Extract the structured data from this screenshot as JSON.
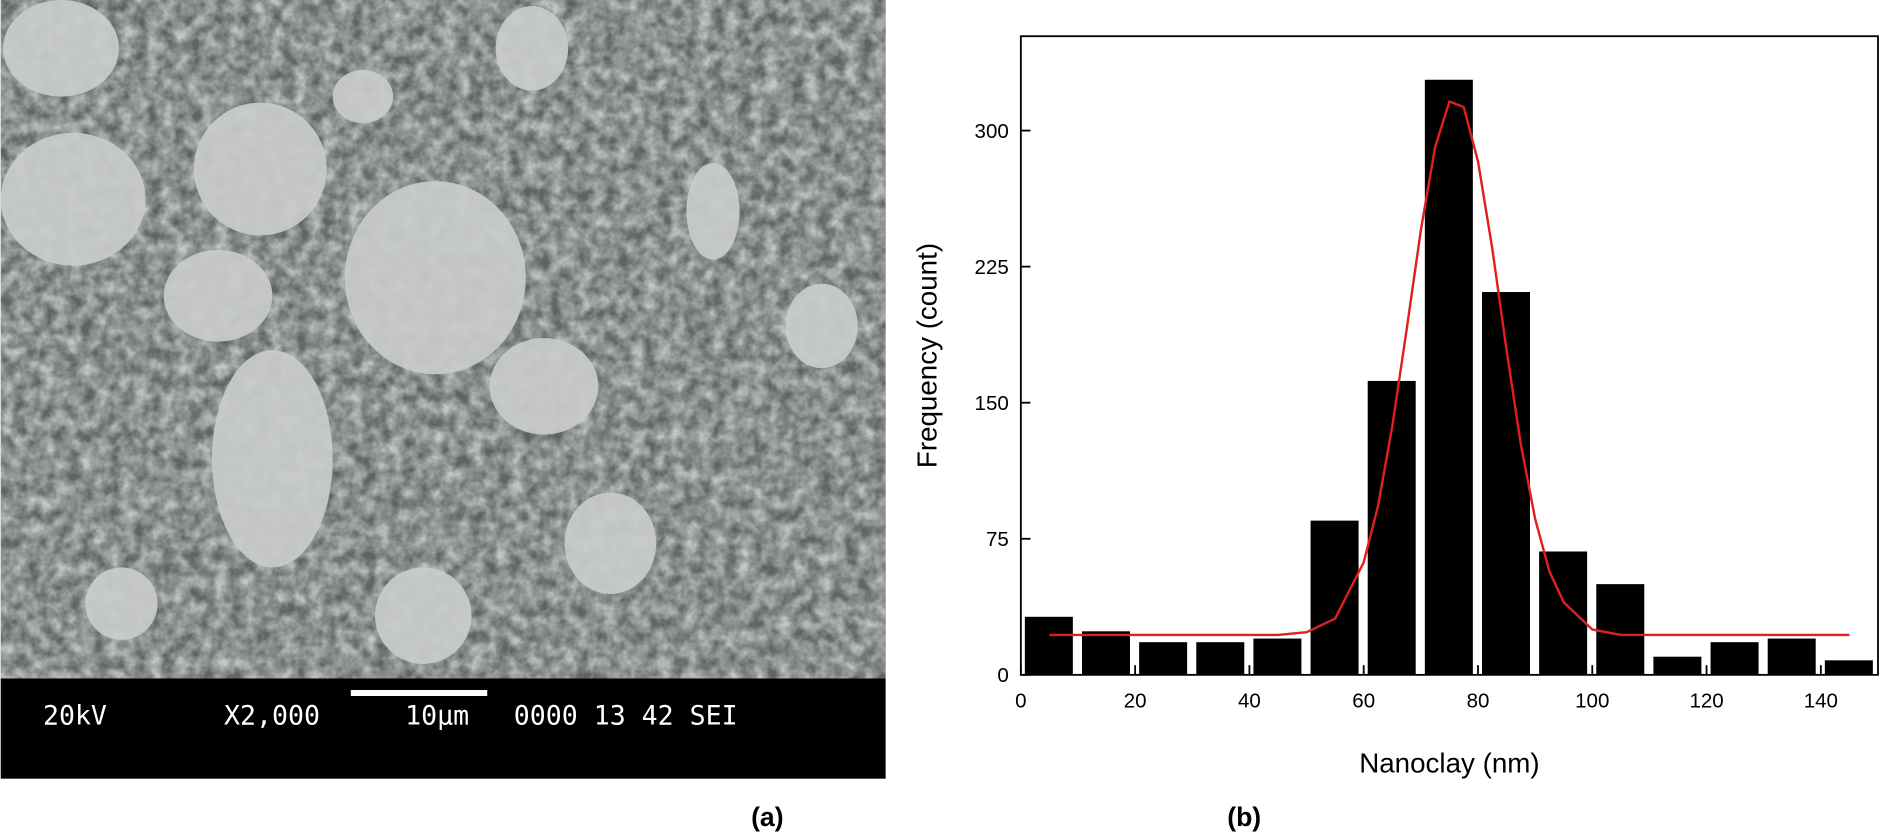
{
  "sem_image": {
    "voltage": "20kV",
    "magnification": "X2,000",
    "scale_bar": "10μm",
    "info": "0000 13 42 SEI"
  },
  "panel_labels": [
    "(a)",
    "(b)"
  ],
  "chart_data": {
    "type": "histogram",
    "x_label": "Nanoclay (nm)",
    "y_label": "Frequency (count)",
    "bins": [
      0,
      10,
      20,
      30,
      40,
      50,
      60,
      70,
      80,
      90,
      100,
      110,
      120,
      130,
      140,
      150
    ],
    "values": [
      32,
      24,
      18,
      18,
      20,
      85,
      162,
      328,
      211,
      68,
      50,
      10,
      18,
      20,
      8
    ],
    "color": "#000000",
    "fit": {
      "color": "#e02020",
      "x": [
        5,
        10,
        15,
        20,
        25,
        30,
        35,
        40,
        45,
        50,
        55,
        60,
        62.5,
        65,
        67.5,
        70,
        72.5,
        75,
        77.5,
        80,
        82.5,
        85,
        87.5,
        90,
        92.5,
        95,
        100,
        105,
        110,
        115,
        120,
        125,
        130,
        135,
        140,
        145
      ],
      "values": [
        22,
        22,
        22,
        22,
        22,
        22,
        22,
        22,
        22,
        23.5,
        31,
        62,
        93,
        137,
        190,
        245,
        291,
        316,
        313,
        283,
        235,
        179,
        127,
        86,
        57,
        40,
        25,
        22,
        22,
        22,
        22,
        22,
        22,
        22,
        22,
        22
      ]
    },
    "xlim": [
      0,
      150
    ],
    "ylim": [
      0,
      352
    ],
    "xticks": [
      0,
      20,
      40,
      60,
      80,
      100,
      120,
      140
    ],
    "yticks": [
      0,
      75,
      150,
      225,
      300
    ]
  }
}
